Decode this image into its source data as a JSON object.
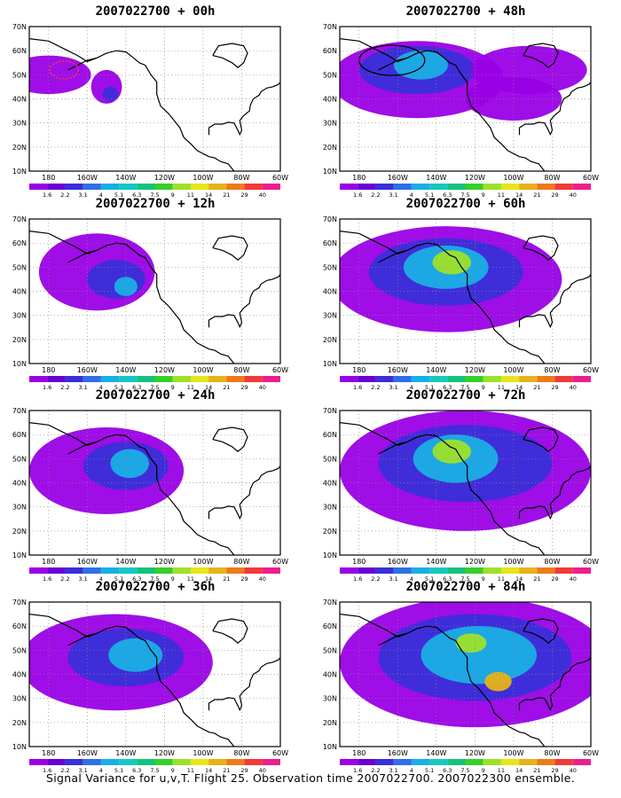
{
  "panels": [
    {
      "id": "p00",
      "title": "2007022700 + 00h",
      "lead": "00h"
    },
    {
      "id": "p48",
      "title": "2007022700 + 48h",
      "lead": "48h"
    },
    {
      "id": "p12",
      "title": "2007022700 + 12h",
      "lead": "12h"
    },
    {
      "id": "p60",
      "title": "2007022700 + 60h",
      "lead": "60h"
    },
    {
      "id": "p24",
      "title": "2007022700 + 24h",
      "lead": "24h"
    },
    {
      "id": "p72",
      "title": "2007022700 + 72h",
      "lead": "72h"
    },
    {
      "id": "p36",
      "title": "2007022700 + 36h",
      "lead": "36h"
    },
    {
      "id": "p84",
      "title": "2007022700 + 84h",
      "lead": "84h"
    }
  ],
  "lat_ticks": [
    "70N",
    "60N",
    "50N",
    "40N",
    "30N",
    "20N",
    "10N"
  ],
  "lon_ticks": [
    "180",
    "160W",
    "140W",
    "120W",
    "100W",
    "80W",
    "60W"
  ],
  "colorbar": {
    "labels": [
      "1.6",
      "2.2",
      "3.1",
      "4",
      "5.1",
      "6.3",
      "7.5",
      "9",
      "11",
      "14",
      "21",
      "29",
      "40"
    ],
    "colors": [
      "#9a00e6",
      "#6a00d0",
      "#3a2fd8",
      "#2f6fe6",
      "#1aaee6",
      "#16c8c0",
      "#15c27d",
      "#36cf2a",
      "#9ee02a",
      "#e6e61a",
      "#e6b21a",
      "#ef7a1a",
      "#f03a3a",
      "#ee1e8c"
    ]
  },
  "caption": "Signal Variance for u,v,T. Flight 25. Observation time 2007022700. 2007022300 ensemble."
}
